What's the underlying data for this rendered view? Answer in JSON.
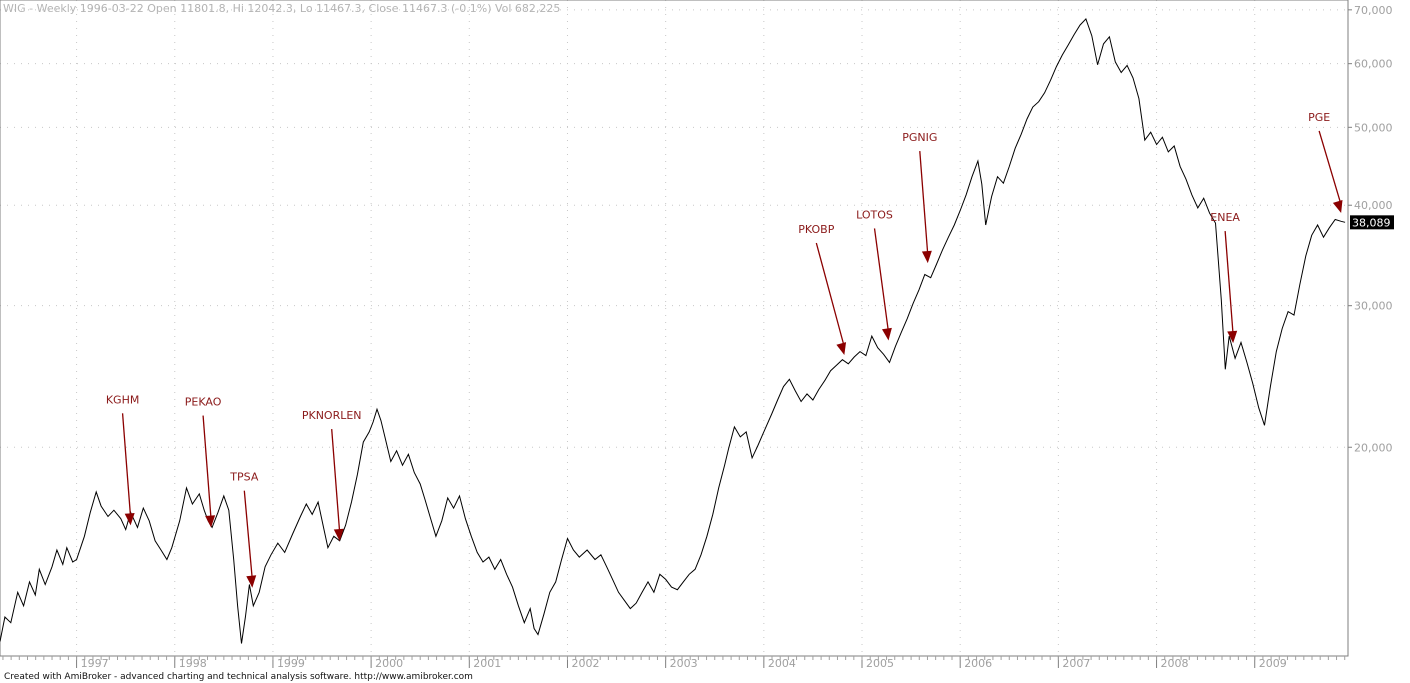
{
  "header": {
    "title": "WIG - Weekly 1996-03-22 Open 11801.8, Hi 12042.3, Lo 11467.3, Close 11467.3 (-0.1%) Vol 682,225"
  },
  "footer": {
    "text": "Created with AmiBroker - advanced charting and technical analysis software. http://www.amibroker.com"
  },
  "colors": {
    "line": "#000000",
    "annotation": "#8b0000",
    "grid": "#c8c8c8",
    "last_value_bg": "#000000"
  },
  "chart_data": {
    "type": "line",
    "x_range": [
      1996.22,
      2009.95
    ],
    "y_scale": "log",
    "ylim": [
      11000,
      72000
    ],
    "y_ticks": [
      20000,
      30000,
      40000,
      50000,
      60000,
      70000
    ],
    "y_tick_labels": [
      "20,000",
      "30,000",
      "40,000",
      "50,000",
      "60,000",
      "70,000"
    ],
    "x_ticks": [
      1997,
      1998,
      1999,
      2000,
      2001,
      2002,
      2003,
      2004,
      2005,
      2006,
      2007,
      2008,
      2009
    ],
    "x_tick_labels": [
      "1997",
      "1998",
      "1999",
      "2000",
      "2001",
      "2002",
      "2003",
      "2004",
      "2005",
      "2006",
      "2007",
      "2008",
      "2009"
    ],
    "grid": true,
    "last_value": 38089,
    "last_value_label": "38,089",
    "series": [
      {
        "points": [
          [
            1996.22,
            11467
          ],
          [
            1996.27,
            12300
          ],
          [
            1996.33,
            12100
          ],
          [
            1996.4,
            13200
          ],
          [
            1996.46,
            12700
          ],
          [
            1996.52,
            13600
          ],
          [
            1996.58,
            13100
          ],
          [
            1996.62,
            14100
          ],
          [
            1996.68,
            13500
          ],
          [
            1996.75,
            14200
          ],
          [
            1996.8,
            14900
          ],
          [
            1996.86,
            14300
          ],
          [
            1996.9,
            15000
          ],
          [
            1996.96,
            14400
          ],
          [
            1997.0,
            14500
          ],
          [
            1997.08,
            15500
          ],
          [
            1997.14,
            16600
          ],
          [
            1997.2,
            17600
          ],
          [
            1997.25,
            16900
          ],
          [
            1997.32,
            16400
          ],
          [
            1997.38,
            16700
          ],
          [
            1997.45,
            16300
          ],
          [
            1997.5,
            15800
          ],
          [
            1997.55,
            16600
          ],
          [
            1997.62,
            15900
          ],
          [
            1997.68,
            16800
          ],
          [
            1997.74,
            16200
          ],
          [
            1997.8,
            15300
          ],
          [
            1997.86,
            14900
          ],
          [
            1997.92,
            14500
          ],
          [
            1997.97,
            15000
          ],
          [
            1998.05,
            16200
          ],
          [
            1998.12,
            17800
          ],
          [
            1998.18,
            17000
          ],
          [
            1998.25,
            17500
          ],
          [
            1998.3,
            16700
          ],
          [
            1998.34,
            16200
          ],
          [
            1998.38,
            15900
          ],
          [
            1998.44,
            16600
          ],
          [
            1998.5,
            17400
          ],
          [
            1998.55,
            16700
          ],
          [
            1998.6,
            14500
          ],
          [
            1998.64,
            12700
          ],
          [
            1998.68,
            11400
          ],
          [
            1998.72,
            12300
          ],
          [
            1998.76,
            13500
          ],
          [
            1998.8,
            12700
          ],
          [
            1998.86,
            13200
          ],
          [
            1998.92,
            14200
          ],
          [
            1998.98,
            14700
          ],
          [
            1999.05,
            15200
          ],
          [
            1999.12,
            14800
          ],
          [
            1999.2,
            15600
          ],
          [
            1999.28,
            16400
          ],
          [
            1999.34,
            17000
          ],
          [
            1999.4,
            16500
          ],
          [
            1999.46,
            17100
          ],
          [
            1999.52,
            15800
          ],
          [
            1999.56,
            15000
          ],
          [
            1999.62,
            15500
          ],
          [
            1999.68,
            15300
          ],
          [
            1999.74,
            16000
          ],
          [
            1999.8,
            17100
          ],
          [
            1999.86,
            18500
          ],
          [
            1999.92,
            20300
          ],
          [
            1999.98,
            20900
          ],
          [
            2000.02,
            21500
          ],
          [
            2000.06,
            22300
          ],
          [
            2000.1,
            21600
          ],
          [
            2000.14,
            20600
          ],
          [
            2000.2,
            19200
          ],
          [
            2000.26,
            19800
          ],
          [
            2000.32,
            19000
          ],
          [
            2000.38,
            19600
          ],
          [
            2000.44,
            18600
          ],
          [
            2000.5,
            18000
          ],
          [
            2000.55,
            17200
          ],
          [
            2000.6,
            16400
          ],
          [
            2000.66,
            15500
          ],
          [
            2000.72,
            16200
          ],
          [
            2000.78,
            17300
          ],
          [
            2000.84,
            16800
          ],
          [
            2000.9,
            17400
          ],
          [
            2000.96,
            16300
          ],
          [
            2001.02,
            15500
          ],
          [
            2001.08,
            14800
          ],
          [
            2001.14,
            14400
          ],
          [
            2001.2,
            14600
          ],
          [
            2001.26,
            14100
          ],
          [
            2001.32,
            14500
          ],
          [
            2001.38,
            13900
          ],
          [
            2001.44,
            13400
          ],
          [
            2001.5,
            12700
          ],
          [
            2001.56,
            12100
          ],
          [
            2001.62,
            12600
          ],
          [
            2001.66,
            11900
          ],
          [
            2001.7,
            11700
          ],
          [
            2001.76,
            12400
          ],
          [
            2001.82,
            13200
          ],
          [
            2001.88,
            13600
          ],
          [
            2001.94,
            14500
          ],
          [
            2002.0,
            15400
          ],
          [
            2002.06,
            14900
          ],
          [
            2002.12,
            14600
          ],
          [
            2002.2,
            14900
          ],
          [
            2002.28,
            14500
          ],
          [
            2002.34,
            14700
          ],
          [
            2002.4,
            14200
          ],
          [
            2002.46,
            13700
          ],
          [
            2002.52,
            13200
          ],
          [
            2002.58,
            12900
          ],
          [
            2002.64,
            12600
          ],
          [
            2002.7,
            12800
          ],
          [
            2002.76,
            13200
          ],
          [
            2002.82,
            13600
          ],
          [
            2002.88,
            13200
          ],
          [
            2002.94,
            13900
          ],
          [
            2003.0,
            13700
          ],
          [
            2003.06,
            13400
          ],
          [
            2003.12,
            13300
          ],
          [
            2003.18,
            13600
          ],
          [
            2003.24,
            13900
          ],
          [
            2003.3,
            14100
          ],
          [
            2003.36,
            14700
          ],
          [
            2003.42,
            15500
          ],
          [
            2003.48,
            16500
          ],
          [
            2003.54,
            17800
          ],
          [
            2003.6,
            19000
          ],
          [
            2003.64,
            19900
          ],
          [
            2003.7,
            21200
          ],
          [
            2003.76,
            20600
          ],
          [
            2003.82,
            20900
          ],
          [
            2003.88,
            19400
          ],
          [
            2003.94,
            20100
          ],
          [
            2004.0,
            20900
          ],
          [
            2004.08,
            22000
          ],
          [
            2004.14,
            22900
          ],
          [
            2004.2,
            23800
          ],
          [
            2004.26,
            24300
          ],
          [
            2004.32,
            23500
          ],
          [
            2004.38,
            22800
          ],
          [
            2004.44,
            23300
          ],
          [
            2004.5,
            22900
          ],
          [
            2004.56,
            23600
          ],
          [
            2004.62,
            24200
          ],
          [
            2004.68,
            24900
          ],
          [
            2004.74,
            25300
          ],
          [
            2004.8,
            25700
          ],
          [
            2004.86,
            25400
          ],
          [
            2004.92,
            25900
          ],
          [
            2004.98,
            26300
          ],
          [
            2005.04,
            26000
          ],
          [
            2005.1,
            27500
          ],
          [
            2005.16,
            26600
          ],
          [
            2005.22,
            26100
          ],
          [
            2005.28,
            25500
          ],
          [
            2005.34,
            26700
          ],
          [
            2005.4,
            27800
          ],
          [
            2005.46,
            28900
          ],
          [
            2005.52,
            30200
          ],
          [
            2005.58,
            31400
          ],
          [
            2005.64,
            32800
          ],
          [
            2005.7,
            32500
          ],
          [
            2005.76,
            33800
          ],
          [
            2005.82,
            35200
          ],
          [
            2005.88,
            36500
          ],
          [
            2005.94,
            37800
          ],
          [
            2006.0,
            39400
          ],
          [
            2006.06,
            41200
          ],
          [
            2006.12,
            43400
          ],
          [
            2006.18,
            45400
          ],
          [
            2006.22,
            42500
          ],
          [
            2006.26,
            37800
          ],
          [
            2006.32,
            41000
          ],
          [
            2006.38,
            43400
          ],
          [
            2006.44,
            42600
          ],
          [
            2006.5,
            44700
          ],
          [
            2006.56,
            47100
          ],
          [
            2006.62,
            49000
          ],
          [
            2006.68,
            51200
          ],
          [
            2006.74,
            53000
          ],
          [
            2006.8,
            53800
          ],
          [
            2006.86,
            55200
          ],
          [
            2006.92,
            57200
          ],
          [
            2006.98,
            59500
          ],
          [
            2007.04,
            61500
          ],
          [
            2007.1,
            63300
          ],
          [
            2007.16,
            65200
          ],
          [
            2007.22,
            67000
          ],
          [
            2007.28,
            68200
          ],
          [
            2007.34,
            65000
          ],
          [
            2007.4,
            59800
          ],
          [
            2007.46,
            63500
          ],
          [
            2007.52,
            64800
          ],
          [
            2007.58,
            60300
          ],
          [
            2007.64,
            58500
          ],
          [
            2007.7,
            59700
          ],
          [
            2007.76,
            57600
          ],
          [
            2007.82,
            54300
          ],
          [
            2007.88,
            48200
          ],
          [
            2007.94,
            49300
          ],
          [
            2008.0,
            47600
          ],
          [
            2008.06,
            48600
          ],
          [
            2008.12,
            46600
          ],
          [
            2008.18,
            47400
          ],
          [
            2008.24,
            44700
          ],
          [
            2008.3,
            43100
          ],
          [
            2008.36,
            41200
          ],
          [
            2008.42,
            39700
          ],
          [
            2008.48,
            40800
          ],
          [
            2008.54,
            39100
          ],
          [
            2008.6,
            38000
          ],
          [
            2008.66,
            30500
          ],
          [
            2008.7,
            25000
          ],
          [
            2008.74,
            27500
          ],
          [
            2008.8,
            25800
          ],
          [
            2008.86,
            27000
          ],
          [
            2008.92,
            25500
          ],
          [
            2008.98,
            24000
          ],
          [
            2009.04,
            22400
          ],
          [
            2009.1,
            21300
          ],
          [
            2009.16,
            23800
          ],
          [
            2009.22,
            26300
          ],
          [
            2009.28,
            28100
          ],
          [
            2009.34,
            29500
          ],
          [
            2009.4,
            29200
          ],
          [
            2009.46,
            31900
          ],
          [
            2009.52,
            34600
          ],
          [
            2009.58,
            36700
          ],
          [
            2009.64,
            37800
          ],
          [
            2009.7,
            36500
          ],
          [
            2009.76,
            37500
          ],
          [
            2009.82,
            38400
          ],
          [
            2009.88,
            38200
          ],
          [
            2009.92,
            38089
          ]
        ]
      }
    ],
    "annotations": [
      {
        "label": "KGHM",
        "x": 1997.55,
        "y": 15900
      },
      {
        "label": "PEKAO",
        "x": 1998.37,
        "y": 15800
      },
      {
        "label": "TPSA",
        "x": 1998.79,
        "y": 13300
      },
      {
        "label": "PKNORLEN",
        "x": 1999.68,
        "y": 15200
      },
      {
        "label": "PKOBP",
        "x": 2004.82,
        "y": 25900
      },
      {
        "label": "LOTOS",
        "x": 2005.27,
        "y": 27000
      },
      {
        "label": "PGNIG",
        "x": 2005.67,
        "y": 33700
      },
      {
        "label": "ENEA",
        "x": 2008.78,
        "y": 26800
      },
      {
        "label": "PGE",
        "x": 2009.88,
        "y": 38900
      }
    ]
  }
}
